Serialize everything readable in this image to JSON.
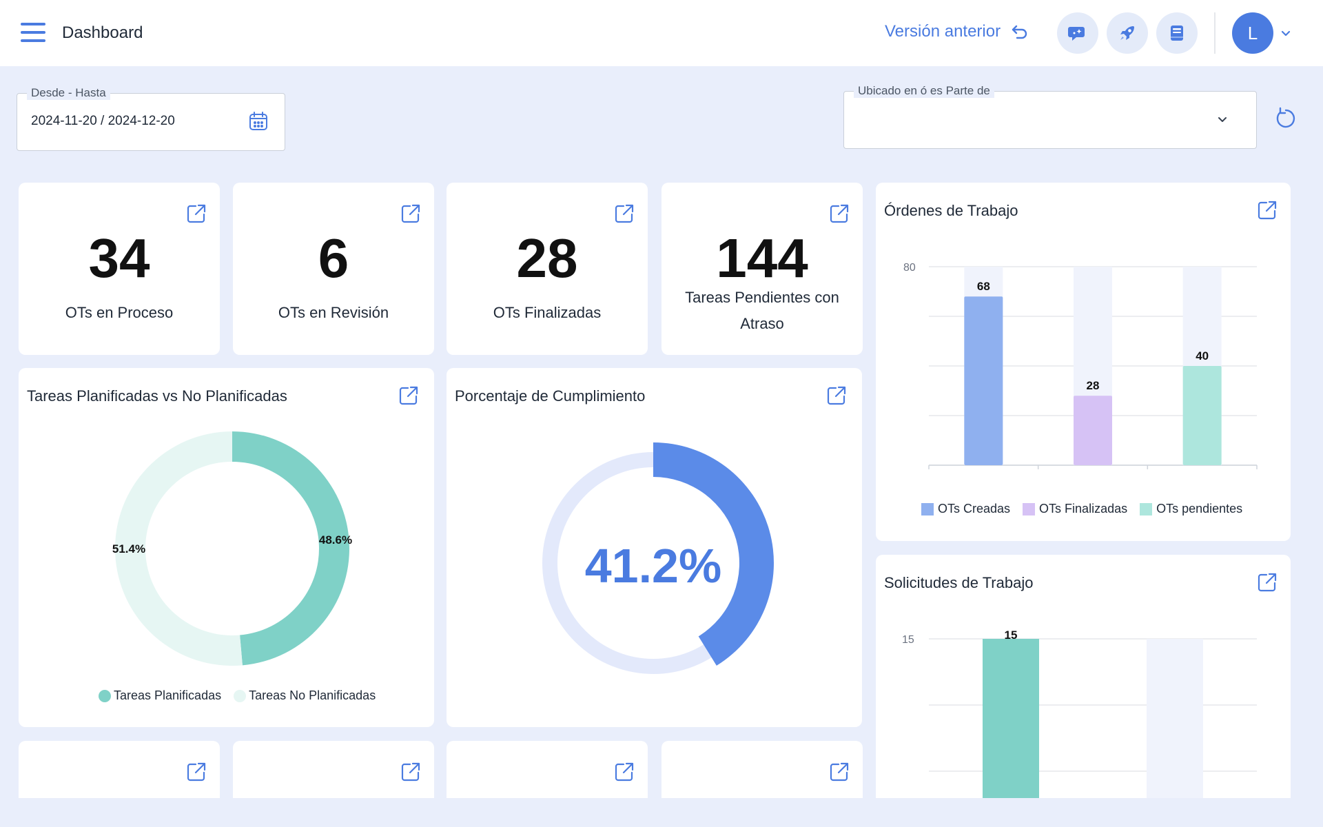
{
  "header": {
    "title": "Dashboard",
    "prev_version": "Versión anterior",
    "avatar_initial": "L"
  },
  "filters": {
    "date_label": "Desde - Hasta",
    "date_value": "2024-11-20 / 2024-12-20",
    "location_label": "Ubicado en ó es Parte de",
    "location_value": ""
  },
  "kpis": [
    {
      "value": "34",
      "label": "OTs en Proceso"
    },
    {
      "value": "6",
      "label": "OTs en Revisión"
    },
    {
      "value": "28",
      "label": "OTs Finalizadas"
    },
    {
      "value": "144",
      "label": "Tareas Pendientes con Atraso"
    }
  ],
  "planned_card": {
    "title": "Tareas Planificadas vs No Planificadas",
    "legend": [
      "Tareas Planificadas",
      "Tareas No Planificadas"
    ],
    "colors": [
      "#7fd1c7",
      "#e6f6f3"
    ]
  },
  "compliance_card": {
    "title": "Porcentaje de Cumplimiento",
    "value_text": "41.2%",
    "color": "#5b8be8"
  },
  "orders_card": {
    "title": "Órdenes de Trabajo",
    "colors": [
      "#8fb0ef",
      "#d6c2f5",
      "#ade6dd"
    ]
  },
  "requests_card": {
    "title": "Solicitudes de Trabajo",
    "colors": [
      "#7fd1c7"
    ]
  },
  "bottom_kpis": [
    "",
    "",
    "",
    ""
  ],
  "chart_data": [
    {
      "type": "pie",
      "title": "Tareas Planificadas vs No Planificadas",
      "categories": [
        "Tareas Planificadas",
        "Tareas No Planificadas"
      ],
      "values": [
        48.6,
        51.4
      ],
      "labels": [
        "48.6%",
        "51.4%"
      ]
    },
    {
      "type": "pie",
      "title": "Porcentaje de Cumplimiento",
      "categories": [
        "Cumplimiento"
      ],
      "values": [
        41.2
      ],
      "labels": [
        "41.2%"
      ]
    },
    {
      "type": "bar",
      "title": "Órdenes de Trabajo",
      "categories": [
        "OTs Creadas",
        "OTs Finalizadas",
        "OTs pendientes"
      ],
      "values": [
        68,
        28,
        40
      ],
      "labels": [
        "68",
        "28",
        "40"
      ],
      "ytick": "80",
      "ylim": [
        0,
        80
      ],
      "grid": true,
      "legend": "bottom"
    },
    {
      "type": "bar",
      "title": "Solicitudes de Trabajo",
      "categories": [
        "",
        ""
      ],
      "values": [
        15,
        0
      ],
      "labels": [
        "15",
        ""
      ],
      "ytick": "15",
      "ylim": [
        0,
        15
      ],
      "grid": true
    }
  ]
}
